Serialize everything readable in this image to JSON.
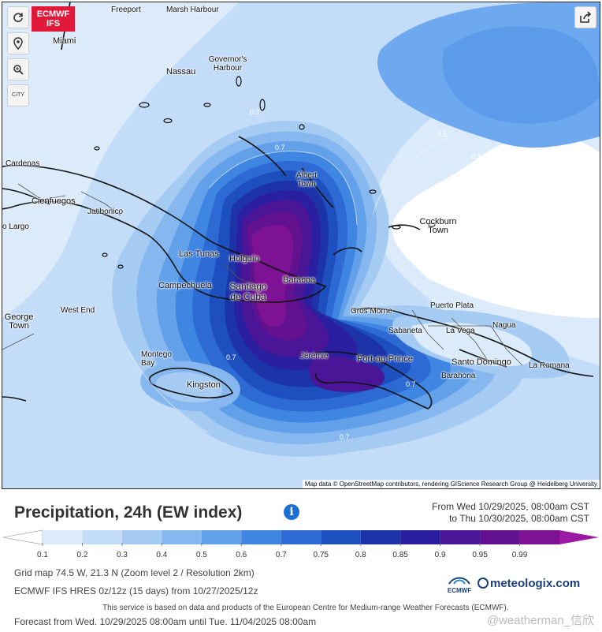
{
  "badge": {
    "line1": "ECMWF",
    "line2": "IFS"
  },
  "controls": {
    "refresh_icon": "refresh-icon",
    "locate_icon": "location-pin-icon",
    "zoom_icon": "zoom-icon",
    "city_label": "CITY",
    "share_icon": "share-icon"
  },
  "map": {
    "cities": [
      {
        "name": "Freeport"
      },
      {
        "name": "Marsh Harbour"
      },
      {
        "name": "Miami"
      },
      {
        "name": "Nassau"
      },
      {
        "name": "Governor's Harbour"
      },
      {
        "name": "Cardenas"
      },
      {
        "name": "Cienfuegos"
      },
      {
        "name": "Jatibonico"
      },
      {
        "name": "o Largo"
      },
      {
        "name": "Albert Town"
      },
      {
        "name": "Cockburn Town"
      },
      {
        "name": "Las Tunas"
      },
      {
        "name": "Holguín"
      },
      {
        "name": "Campechuela"
      },
      {
        "name": "Santiago de Cuba"
      },
      {
        "name": "Baracoa"
      },
      {
        "name": "George Town"
      },
      {
        "name": "West End"
      },
      {
        "name": "Gros Morne"
      },
      {
        "name": "Puerto Plata"
      },
      {
        "name": "Sabaneta"
      },
      {
        "name": "La Vega"
      },
      {
        "name": "Nagua"
      },
      {
        "name": "Montego Bay"
      },
      {
        "name": "Jérémie"
      },
      {
        "name": "Port-au-Prince"
      },
      {
        "name": "Santo Domingo"
      },
      {
        "name": "La Romana"
      },
      {
        "name": "Barahona"
      },
      {
        "name": "Kingston"
      }
    ],
    "isolines": [
      "0.5",
      "0.3",
      "0.7",
      "0.3",
      "0.7",
      "0.7",
      "0.7"
    ],
    "attribution": "Map data © OpenStreetMap contributors, rendering GIScience Research Group @ Heidelberg University"
  },
  "header": {
    "title": "Precipitation, 24h (EW index)",
    "from": "From Wed 10/29/2025, 08:00am CST",
    "to": "to Thu 10/30/2025, 08:00am CST"
  },
  "legend": {
    "ticks": [
      "0.1",
      "0.2",
      "0.3",
      "0.4",
      "0.5",
      "0.6",
      "0.7",
      "0.75",
      "0.8",
      "0.85",
      "0.9",
      "0.95",
      "0.99"
    ],
    "colors": [
      "#ffffff",
      "#dcebfa",
      "#c3dcf7",
      "#a6cbf3",
      "#86b8ef",
      "#62a1ea",
      "#3f86e2",
      "#2d6ad3",
      "#1e4fbf",
      "#1d33a8",
      "#2a1fa0",
      "#4a1697",
      "#63128f",
      "#7e1294",
      "#9a1aa3"
    ]
  },
  "info": {
    "grid": "Grid map 74.5 W, 21.3 N (Zoom level 2 / Resolution 2km)",
    "model": "ECMWF IFS HRES 0z/12z (15 days) from 10/27/2025/12z",
    "disclaimer": "This service is based on data and products of the European Centre for Medium-range Weather Forecasts (ECMWF).",
    "forecast": "Forecast from Wed. 10/29/2025 08:00am until Tue. 11/04/2025 08:00am",
    "ecmwf_logo": "ECMWF",
    "brand": "meteologix.com",
    "watermark": "@weatherman_信欣"
  }
}
